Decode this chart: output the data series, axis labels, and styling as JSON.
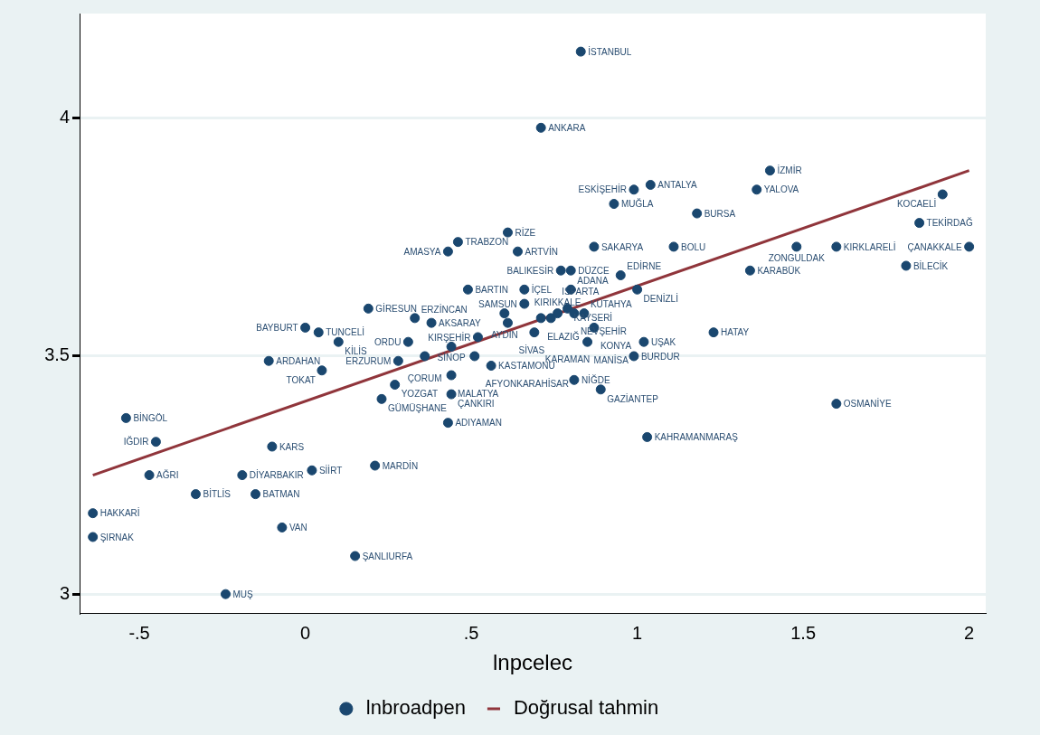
{
  "chart_data": {
    "type": "scatter",
    "xlabel": "lnpcelec",
    "xlim": [
      -0.68,
      2.05
    ],
    "ylim": [
      2.96,
      4.22
    ],
    "xticks": [
      {
        "value": -0.5,
        "label": "-.5"
      },
      0,
      {
        "value": 0.5,
        "label": ".5"
      },
      1,
      1.5,
      2
    ],
    "yticks": [
      3,
      3.5,
      4
    ],
    "grid": "y",
    "legend": "bottom",
    "series": [
      {
        "name": "lnbroadpen",
        "type": "scatter",
        "marker": "circle",
        "color": "#1a476f",
        "x": [
          0.83,
          0.71,
          1.4,
          1.04,
          0.99,
          1.36,
          1.92,
          0.93,
          1.18,
          1.85,
          0.61,
          0.46,
          0.87,
          1.11,
          0.43,
          0.64,
          1.48,
          1.6,
          2.0,
          0.77,
          0.8,
          0.95,
          1.34,
          1.81,
          0.49,
          0.66,
          0.8,
          1.0,
          0.66,
          0.19,
          0.33,
          0.38,
          0.6,
          0.61,
          0.71,
          0.74,
          0.76,
          0.79,
          0.81,
          0.84,
          0.0,
          0.04,
          0.1,
          0.69,
          0.87,
          1.23,
          0.52,
          0.31,
          0.85,
          1.02,
          0.44,
          0.36,
          0.51,
          -0.11,
          0.28,
          0.99,
          0.05,
          0.56,
          0.44,
          0.27,
          0.81,
          0.44,
          0.89,
          0.23,
          1.6,
          -0.54,
          0.43,
          -0.45,
          1.03,
          -0.1,
          -0.47,
          -0.19,
          0.02,
          0.21,
          -0.33,
          -0.15,
          -0.64,
          -0.07,
          -0.64,
          0.15,
          -0.24
        ],
        "values": [
          4.14,
          3.98,
          3.89,
          3.86,
          3.85,
          3.85,
          3.84,
          3.82,
          3.8,
          3.78,
          3.76,
          3.74,
          3.73,
          3.73,
          3.72,
          3.72,
          3.73,
          3.73,
          3.73,
          3.68,
          3.68,
          3.67,
          3.68,
          3.69,
          3.64,
          3.64,
          3.64,
          3.64,
          3.61,
          3.6,
          3.58,
          3.57,
          3.59,
          3.57,
          3.58,
          3.58,
          3.59,
          3.6,
          3.59,
          3.59,
          3.56,
          3.55,
          3.53,
          3.55,
          3.56,
          3.55,
          3.54,
          3.53,
          3.53,
          3.53,
          3.52,
          3.5,
          3.5,
          3.49,
          3.49,
          3.5,
          3.47,
          3.48,
          3.46,
          3.44,
          3.45,
          3.42,
          3.43,
          3.41,
          3.4,
          3.37,
          3.36,
          3.32,
          3.33,
          3.31,
          3.25,
          3.25,
          3.26,
          3.27,
          3.21,
          3.21,
          3.17,
          3.14,
          3.12,
          3.08,
          3.0
        ]
      },
      {
        "name": "Doğrusal tahmin",
        "type": "line",
        "marker": "none",
        "color": "#90353b",
        "x": [
          -0.64,
          2.0
        ],
        "values": [
          3.25,
          3.89
        ]
      }
    ],
    "annotations": [
      {
        "text": "İSTANBUL",
        "x": 0.83,
        "y": 4.14
      },
      {
        "text": "ANKARA",
        "x": 0.71,
        "y": 3.98
      },
      {
        "text": "İZMİR",
        "x": 1.4,
        "y": 3.89
      },
      {
        "text": "ANTALYA",
        "x": 1.04,
        "y": 3.86
      },
      {
        "text": "ESKİŞEHİR",
        "x": 0.99,
        "y": 3.85
      },
      {
        "text": "YALOVA",
        "x": 1.36,
        "y": 3.85
      },
      {
        "text": "KOCAELİ",
        "x": 1.92,
        "y": 3.84
      },
      {
        "text": "MUĞLA",
        "x": 0.93,
        "y": 3.82
      },
      {
        "text": "BURSA",
        "x": 1.18,
        "y": 3.8
      },
      {
        "text": "TEKİRDAĞ",
        "x": 1.85,
        "y": 3.78
      },
      {
        "text": "RİZE",
        "x": 0.61,
        "y": 3.76
      },
      {
        "text": "TRABZON",
        "x": 0.46,
        "y": 3.74
      },
      {
        "text": "SAKARYA",
        "x": 0.87,
        "y": 3.73
      },
      {
        "text": "BOLU",
        "x": 1.11,
        "y": 3.73
      },
      {
        "text": "AMASYA",
        "x": 0.43,
        "y": 3.72
      },
      {
        "text": "ARTVİN",
        "x": 0.64,
        "y": 3.72
      },
      {
        "text": "ZONGULDAK",
        "x": 1.48,
        "y": 3.73
      },
      {
        "text": "KIRKLARELİ",
        "x": 1.6,
        "y": 3.73
      },
      {
        "text": "ÇANAKKALE",
        "x": 2.0,
        "y": 3.73
      },
      {
        "text": "BALIKESİR",
        "x": 0.77,
        "y": 3.68
      },
      {
        "text": "DÜZCE",
        "x": 0.8,
        "y": 3.68
      },
      {
        "text": "EDİRNE",
        "x": 0.95,
        "y": 3.67
      },
      {
        "text": "KARABÜK",
        "x": 1.34,
        "y": 3.68
      },
      {
        "text": "BİLECİK",
        "x": 1.81,
        "y": 3.69
      },
      {
        "text": "BARTIN",
        "x": 0.49,
        "y": 3.64
      },
      {
        "text": "İÇEL",
        "x": 0.66,
        "y": 3.64
      },
      {
        "text": "ADANA",
        "x": 0.8,
        "y": 3.64
      },
      {
        "text": "DENİZLİ",
        "x": 1.0,
        "y": 3.64
      },
      {
        "text": "SAMSUN",
        "x": 0.66,
        "y": 3.61
      },
      {
        "text": "GİRESUN",
        "x": 0.19,
        "y": 3.6
      },
      {
        "text": "ERZİNCAN",
        "x": 0.33,
        "y": 3.58
      },
      {
        "text": "AKSARAY",
        "x": 0.38,
        "y": 3.57
      },
      {
        "text": "AYDIN",
        "x": 0.6,
        "y": 3.59
      },
      {
        "text": "SİVAS",
        "x": 0.61,
        "y": 3.57
      },
      {
        "text": "ELAZIĞ",
        "x": 0.71,
        "y": 3.58
      },
      {
        "text": "ISPARTA",
        "x": 0.74,
        "y": 3.58
      },
      {
        "text": "KIRIKKALE",
        "x": 0.76,
        "y": 3.59
      },
      {
        "text": "KAYSERİ",
        "x": 0.79,
        "y": 3.6
      },
      {
        "text": "NEVŞEHİR",
        "x": 0.81,
        "y": 3.59
      },
      {
        "text": "KÜTAHYA",
        "x": 0.84,
        "y": 3.59
      },
      {
        "text": "BAYBURT",
        "x": 0.0,
        "y": 3.56
      },
      {
        "text": "TUNCELİ",
        "x": 0.04,
        "y": 3.55
      },
      {
        "text": "KİLİS",
        "x": 0.1,
        "y": 3.53
      },
      {
        "text": "KARAMAN",
        "x": 0.69,
        "y": 3.55
      },
      {
        "text": "KONYA",
        "x": 0.87,
        "y": 3.56
      },
      {
        "text": "HATAY",
        "x": 1.23,
        "y": 3.55
      },
      {
        "text": "KIRŞEHİR",
        "x": 0.52,
        "y": 3.54
      },
      {
        "text": "ORDU",
        "x": 0.31,
        "y": 3.53
      },
      {
        "text": "MANİSA",
        "x": 0.85,
        "y": 3.53
      },
      {
        "text": "UŞAK",
        "x": 1.02,
        "y": 3.53
      },
      {
        "text": "SİNOP",
        "x": 0.44,
        "y": 3.52
      },
      {
        "text": "ÇORUM",
        "x": 0.36,
        "y": 3.5
      },
      {
        "text": "AFYONKARAHİSAR",
        "x": 0.51,
        "y": 3.5
      },
      {
        "text": "ARDAHAN",
        "x": -0.11,
        "y": 3.49
      },
      {
        "text": "ERZURUM",
        "x": 0.28,
        "y": 3.49
      },
      {
        "text": "BURDUR",
        "x": 0.99,
        "y": 3.5
      },
      {
        "text": "TOKAT",
        "x": 0.05,
        "y": 3.47
      },
      {
        "text": "KASTAMONU",
        "x": 0.56,
        "y": 3.48
      },
      {
        "text": "MALATYA",
        "x": 0.44,
        "y": 3.46
      },
      {
        "text": "YOZGAT",
        "x": 0.27,
        "y": 3.44
      },
      {
        "text": "NİĞDE",
        "x": 0.81,
        "y": 3.45
      },
      {
        "text": "ÇANKIRI",
        "x": 0.44,
        "y": 3.42
      },
      {
        "text": "GAZİANTEP",
        "x": 0.89,
        "y": 3.43
      },
      {
        "text": "GÜMÜŞHANE",
        "x": 0.23,
        "y": 3.41
      },
      {
        "text": "OSMANİYE",
        "x": 1.6,
        "y": 3.4
      },
      {
        "text": "BİNGÖL",
        "x": -0.54,
        "y": 3.37
      },
      {
        "text": "ADIYAMAN",
        "x": 0.43,
        "y": 3.36
      },
      {
        "text": "IĞDIR",
        "x": -0.45,
        "y": 3.32
      },
      {
        "text": "KAHRAMANMARAŞ",
        "x": 1.03,
        "y": 3.33
      },
      {
        "text": "KARS",
        "x": -0.1,
        "y": 3.31
      },
      {
        "text": "AĞRI",
        "x": -0.47,
        "y": 3.25
      },
      {
        "text": "DİYARBAKIR",
        "x": -0.19,
        "y": 3.25
      },
      {
        "text": "SİİRT",
        "x": 0.02,
        "y": 3.26
      },
      {
        "text": "MARDİN",
        "x": 0.21,
        "y": 3.27
      },
      {
        "text": "BİTLİS",
        "x": -0.33,
        "y": 3.21
      },
      {
        "text": "BATMAN",
        "x": -0.15,
        "y": 3.21
      },
      {
        "text": "HAKKARİ",
        "x": -0.64,
        "y": 3.17
      },
      {
        "text": "VAN",
        "x": -0.07,
        "y": 3.14
      },
      {
        "text": "ŞIRNAK",
        "x": -0.64,
        "y": 3.12
      },
      {
        "text": "ŞANLIURFA",
        "x": 0.15,
        "y": 3.08
      },
      {
        "text": "MUŞ",
        "x": -0.24,
        "y": 3.0
      }
    ]
  }
}
